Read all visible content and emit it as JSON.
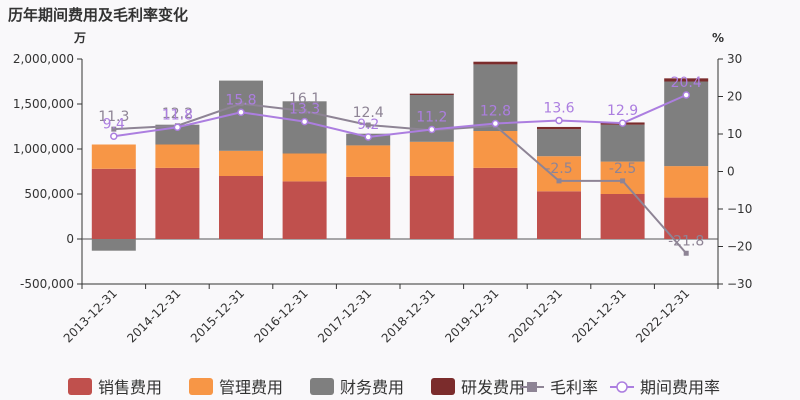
{
  "chart_data": {
    "type": "bar",
    "title": "历年期间费用及毛利率变化",
    "y_left_unit": "万",
    "y_right_unit": "%",
    "categories": [
      "2013-12-31",
      "2014-12-31",
      "2015-12-31",
      "2016-12-31",
      "2017-12-31",
      "2018-12-31",
      "2019-12-31",
      "2020-12-31",
      "2021-12-31",
      "2022-12-31"
    ],
    "y_left": {
      "min": -500000,
      "max": 2000000,
      "ticks": [
        -500000,
        0,
        500000,
        1000000,
        1500000,
        2000000
      ],
      "tick_labels": [
        "-500,000",
        "0",
        "500,000",
        "1,000,000",
        "1,500,000",
        "2,000,000"
      ]
    },
    "y_right": {
      "min": -30,
      "max": 30,
      "ticks": [
        -30,
        -20,
        -10,
        0,
        10,
        20,
        30
      ],
      "tick_labels": [
        "−30",
        "−20",
        "−10",
        "0",
        "10",
        "20",
        "30"
      ]
    },
    "bar_series": [
      {
        "name": "销售费用",
        "color": "#c0504d",
        "values": [
          780000,
          790000,
          700000,
          640000,
          690000,
          700000,
          790000,
          530000,
          500000,
          460000
        ]
      },
      {
        "name": "管理费用",
        "color": "#f79646",
        "values": [
          270000,
          260000,
          280000,
          310000,
          350000,
          380000,
          410000,
          390000,
          360000,
          350000
        ]
      },
      {
        "name": "财务费用",
        "color": "#7f7f7f",
        "values": [
          -130000,
          220000,
          780000,
          580000,
          130000,
          520000,
          740000,
          300000,
          410000,
          940000
        ]
      },
      {
        "name": "研发费用",
        "color": "#7b2c2c",
        "values": [
          0,
          0,
          0,
          0,
          0,
          15000,
          30000,
          25000,
          25000,
          35000
        ]
      }
    ],
    "line_series": [
      {
        "name": "毛利率",
        "color": "#8e8495",
        "values": [
          11.3,
          12.2,
          18.1,
          16.1,
          12.4,
          11.0,
          12.2,
          -2.5,
          -2.5,
          -21.8
        ],
        "labels": [
          "11.3",
          "12.2",
          "",
          "16.1",
          "12.4",
          "",
          "",
          "-2.5",
          "-2.5",
          "-21.8"
        ]
      },
      {
        "name": "期间费用率",
        "color": "#ac7ee0",
        "values": [
          9.4,
          11.8,
          15.8,
          13.3,
          9.2,
          11.2,
          12.8,
          13.6,
          12.9,
          20.4
        ],
        "labels": [
          "9.4",
          "11.8",
          "15.8",
          "13.3",
          "9.2",
          "11.2",
          "12.8",
          "13.6",
          "12.9",
          "20.4"
        ]
      }
    ],
    "legend": {
      "position": "bottom",
      "items": [
        {
          "name": "销售费用",
          "kind": "bar",
          "color": "#c0504d"
        },
        {
          "name": "管理费用",
          "kind": "bar",
          "color": "#f79646"
        },
        {
          "name": "财务费用",
          "kind": "bar",
          "color": "#7f7f7f"
        },
        {
          "name": "研发费用",
          "kind": "bar",
          "color": "#7b2c2c"
        },
        {
          "name": "毛利率",
          "kind": "line-square",
          "color": "#8e8495"
        },
        {
          "name": "期间费用率",
          "kind": "line-circle",
          "color": "#ac7ee0"
        }
      ]
    },
    "grid": false
  }
}
